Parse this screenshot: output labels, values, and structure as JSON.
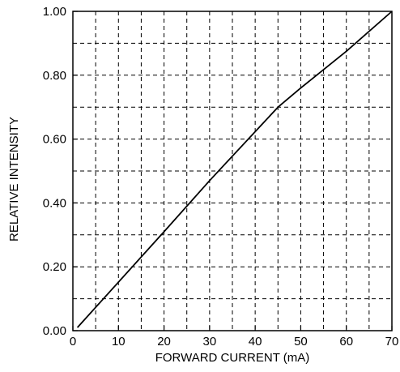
{
  "chart_data": {
    "type": "line",
    "title": "",
    "xlabel": "FORWARD CURRENT (mA)",
    "ylabel": "RELATIVE INTENSITY",
    "xlim": [
      0,
      70
    ],
    "ylim": [
      0,
      1.0
    ],
    "x_ticks": [
      0,
      10,
      20,
      30,
      40,
      50,
      60,
      70
    ],
    "x_tick_labels": [
      "0",
      "10",
      "20",
      "30",
      "40",
      "50",
      "60",
      "70"
    ],
    "y_ticks": [
      0,
      0.2,
      0.4,
      0.6,
      0.8,
      1.0
    ],
    "y_tick_labels": [
      "0.00",
      "0.20",
      "0.40",
      "0.60",
      "0.80",
      "1.00"
    ],
    "grid": {
      "style": "dashed",
      "x_step": 5,
      "y_step": 0.1
    },
    "series": [
      {
        "color": "#000000",
        "x": [
          1,
          20,
          30,
          45,
          50,
          60,
          70
        ],
        "y": [
          0.01,
          0.31,
          0.47,
          0.7,
          0.76,
          0.875,
          1.0
        ]
      }
    ]
  }
}
